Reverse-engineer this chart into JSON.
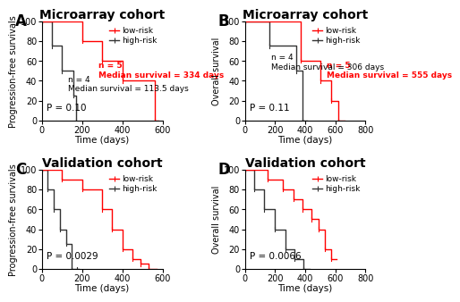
{
  "panels": [
    {
      "label": "A",
      "title": "Microarray cohort",
      "ylabel": "Progression-free survivals",
      "xlabel": "Time (days)",
      "xlim": [
        0,
        600
      ],
      "ylim": [
        0,
        100
      ],
      "xticks": [
        0,
        200,
        400,
        600
      ],
      "yticks": [
        0,
        20,
        40,
        60,
        80,
        100
      ],
      "pvalue": "P = 0.10",
      "low_risk": {
        "x": [
          0,
          200,
          200,
          300,
          300,
          400,
          400,
          560,
          560,
          580
        ],
        "y": [
          100,
          100,
          80,
          80,
          60,
          60,
          40,
          40,
          0,
          0
        ],
        "n": 5,
        "median": "334 days",
        "ann_x": 280,
        "ann_y": 42,
        "color": "#FF0000"
      },
      "high_risk": {
        "x": [
          0,
          50,
          50,
          100,
          100,
          155,
          155,
          170,
          170
        ],
        "y": [
          100,
          100,
          75,
          75,
          50,
          50,
          25,
          25,
          0
        ],
        "n": 4,
        "median": "113.5 days",
        "ann_x": 130,
        "ann_y": 28,
        "color": "#333333"
      }
    },
    {
      "label": "B",
      "title": "Microarray cohort",
      "ylabel": "Overall survival",
      "xlabel": "Time (days)",
      "xlim": [
        0,
        800
      ],
      "ylim": [
        0,
        100
      ],
      "xticks": [
        0,
        200,
        400,
        600,
        800
      ],
      "yticks": [
        0,
        20,
        40,
        60,
        80,
        100
      ],
      "pvalue": "P = 0.11",
      "low_risk": {
        "x": [
          0,
          370,
          370,
          500,
          500,
          570,
          570,
          620,
          620,
          660
        ],
        "y": [
          100,
          100,
          60,
          60,
          40,
          40,
          20,
          20,
          0,
          0
        ],
        "n": 5,
        "median": "555 days",
        "ann_x": 540,
        "ann_y": 42,
        "color": "#FF0000"
      },
      "high_risk": {
        "x": [
          0,
          160,
          160,
          340,
          340,
          380,
          380,
          410
        ],
        "y": [
          100,
          100,
          75,
          75,
          50,
          50,
          0,
          0
        ],
        "n": 4,
        "median": "306 days",
        "ann_x": 175,
        "ann_y": 50,
        "color": "#333333"
      }
    },
    {
      "label": "C",
      "title": "Validation cohort",
      "ylabel": "Progression-free survivals",
      "xlabel": "Time (days)",
      "xlim": [
        0,
        600
      ],
      "ylim": [
        0,
        100
      ],
      "xticks": [
        0,
        200,
        400,
        600
      ],
      "yticks": [
        0,
        20,
        40,
        60,
        80,
        100
      ],
      "pvalue": "P = 0.0029",
      "low_risk": {
        "x": [
          0,
          100,
          100,
          200,
          200,
          300,
          300,
          350,
          350,
          400,
          400,
          450,
          450,
          490,
          490,
          530,
          530,
          570
        ],
        "y": [
          100,
          100,
          90,
          90,
          80,
          80,
          60,
          60,
          40,
          40,
          20,
          20,
          10,
          10,
          5,
          5,
          0,
          0
        ],
        "n": null,
        "median": null,
        "color": "#FF0000"
      },
      "high_risk": {
        "x": [
          0,
          30,
          30,
          60,
          60,
          90,
          90,
          120,
          120,
          150,
          150,
          175,
          175,
          185
        ],
        "y": [
          100,
          100,
          80,
          80,
          60,
          60,
          40,
          40,
          25,
          25,
          0,
          0,
          0,
          0
        ],
        "n": null,
        "median": null,
        "color": "#333333"
      }
    },
    {
      "label": "D",
      "title": "Validation cohort",
      "ylabel": "Overall survival",
      "xlabel": "Time (days)",
      "xlim": [
        0,
        800
      ],
      "ylim": [
        0,
        100
      ],
      "xticks": [
        0,
        200,
        400,
        600,
        800
      ],
      "yticks": [
        0,
        20,
        40,
        60,
        80,
        100
      ],
      "pvalue": "P = 0.0066",
      "low_risk": {
        "x": [
          0,
          150,
          150,
          250,
          250,
          320,
          320,
          380,
          380,
          440,
          440,
          490,
          490,
          530,
          530,
          570,
          570,
          610
        ],
        "y": [
          100,
          100,
          90,
          90,
          80,
          80,
          70,
          70,
          60,
          60,
          50,
          50,
          40,
          40,
          20,
          20,
          10,
          10
        ],
        "n": null,
        "median": null,
        "color": "#FF0000"
      },
      "high_risk": {
        "x": [
          0,
          60,
          60,
          130,
          130,
          200,
          200,
          270,
          270,
          330,
          330,
          390,
          390,
          430
        ],
        "y": [
          100,
          100,
          80,
          80,
          60,
          60,
          40,
          40,
          20,
          20,
          10,
          10,
          0,
          0
        ],
        "n": null,
        "median": null,
        "color": "#333333"
      }
    }
  ],
  "fig_bg": "#ffffff",
  "legend_low_color": "#FF0000",
  "legend_high_color": "#333333",
  "panel_label_fontsize": 12,
  "title_fontsize": 10,
  "axis_label_fontsize": 7.5,
  "tick_fontsize": 7,
  "annotation_fontsize": 6.5,
  "pvalue_fontsize": 7.5
}
